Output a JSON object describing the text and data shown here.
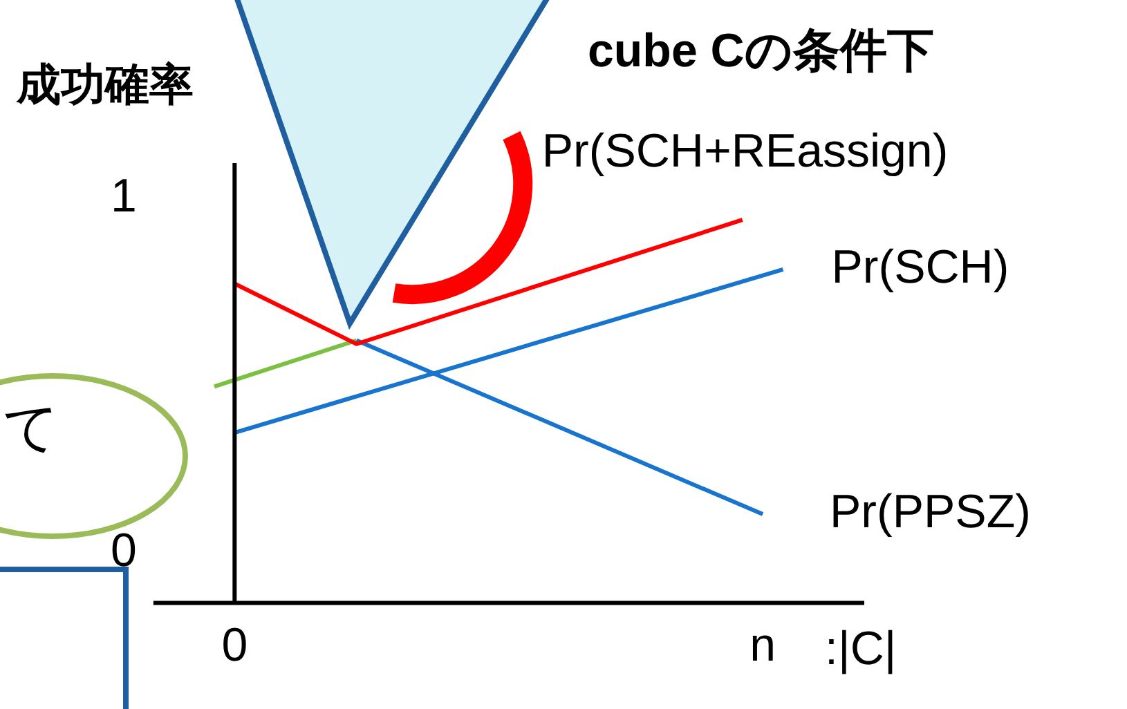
{
  "chart_data": {
    "type": "line",
    "xlabel": ":|C|",
    "annotations": [
      "成功確率",
      "cube Cの条件下",
      "て"
    ],
    "ylim": [
      -0.14,
      1.1
    ],
    "yticks": [
      0,
      1
    ],
    "grid": false,
    "legend": false,
    "marker": "none",
    "categories": [
      null,
      null,
      null,
      null,
      "0",
      null,
      null,
      null,
      null,
      null,
      null,
      null,
      null,
      null,
      null,
      null,
      null,
      null,
      null,
      null,
      null,
      null,
      null,
      null,
      null,
      null,
      null,
      null,
      null,
      null,
      "n",
      null,
      null,
      null,
      null,
      null
    ],
    "series": [
      {
        "name": "Pr(SCH+REassign)",
        "color": "#ff0000",
        "values": [
          null,
          null,
          null,
          null,
          0.76,
          null,
          null,
          null,
          null,
          null,
          0.59,
          null,
          null,
          null,
          null,
          null,
          null,
          null,
          null,
          null,
          null,
          null,
          null,
          null,
          null,
          null,
          null,
          null,
          null,
          0.94,
          null,
          null,
          null,
          null,
          null,
          null
        ]
      },
      {
        "name": "Pr(SCH)",
        "color": "#1874cd",
        "values": [
          null,
          null,
          null,
          null,
          0.34,
          null,
          null,
          null,
          null,
          null,
          null,
          null,
          null,
          null,
          null,
          null,
          null,
          null,
          null,
          null,
          null,
          null,
          null,
          null,
          null,
          null,
          null,
          null,
          null,
          null,
          null,
          0.8,
          null,
          null,
          null,
          null
        ]
      },
      {
        "name": "Pr(PPSZ)",
        "color": "#1874cd",
        "values": [
          null,
          null,
          null,
          null,
          null,
          null,
          null,
          null,
          null,
          null,
          0.6,
          null,
          null,
          null,
          null,
          null,
          null,
          null,
          null,
          null,
          null,
          null,
          null,
          null,
          null,
          null,
          null,
          null,
          null,
          null,
          0.11,
          null,
          null,
          null,
          null,
          null
        ]
      },
      {
        "color": "#7ac143",
        "values": [
          null,
          null,
          null,
          0.47,
          null,
          null,
          null,
          null,
          null,
          null,
          0.6,
          null,
          null,
          null,
          null,
          null,
          null,
          null,
          null,
          null,
          null,
          null,
          null,
          null,
          null,
          null,
          null,
          null,
          null,
          null,
          null,
          null,
          null,
          null,
          null,
          null
        ]
      }
    ]
  }
}
